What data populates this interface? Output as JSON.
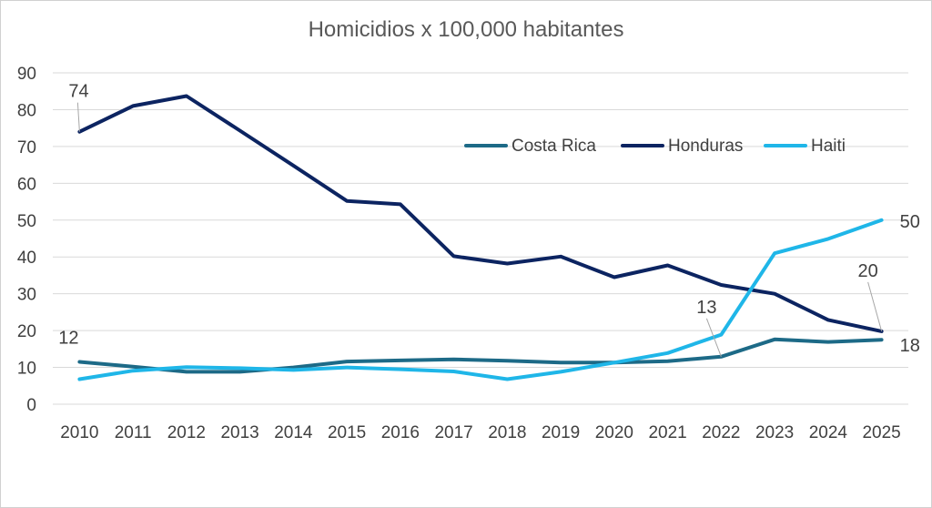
{
  "chart_data": {
    "type": "line",
    "title": "Homicidios x 100,000 habitantes",
    "xlabel": "",
    "ylabel": "",
    "ylim": [
      0,
      90
    ],
    "yticks": [
      "0",
      "10",
      "20",
      "30",
      "40",
      "50",
      "60",
      "70",
      "80",
      "90"
    ],
    "categories": [
      "2010",
      "2011",
      "2012",
      "2013",
      "2014",
      "2015",
      "2016",
      "2017",
      "2018",
      "2019",
      "2020",
      "2021",
      "2022",
      "2023",
      "2024",
      "2025"
    ],
    "grid": true,
    "legend_position": "top-right",
    "series": [
      {
        "name": "Costa Rica",
        "color": "#1d6a87",
        "values": [
          11.5,
          10.2,
          8.8,
          8.8,
          10,
          11.6,
          11.9,
          12.2,
          11.8,
          11.3,
          11.3,
          11.7,
          12.9,
          17.6,
          16.9,
          17.5
        ]
      },
      {
        "name": "Honduras",
        "color": "#0c2461",
        "values": [
          74,
          81,
          83.7,
          74.3,
          64.8,
          55.2,
          54.3,
          40.2,
          38.2,
          40.1,
          34.5,
          37.7,
          32.4,
          30,
          22.9,
          19.8
        ]
      },
      {
        "name": "Haiti",
        "color": "#1fb6e8",
        "values": [
          6.8,
          9.1,
          10.1,
          9.8,
          9.3,
          10,
          9.5,
          8.9,
          6.8,
          8.8,
          11.3,
          13.9,
          18.9,
          41,
          44.9,
          50
        ]
      }
    ],
    "data_labels": [
      {
        "series": "Honduras",
        "category": "2010",
        "text": "74"
      },
      {
        "series": "Costa Rica",
        "category": "2010",
        "text": "12"
      },
      {
        "series": "Costa Rica",
        "category": "2022",
        "text": "13"
      },
      {
        "series": "Honduras",
        "category": "2025",
        "text": "20"
      },
      {
        "series": "Costa Rica",
        "category": "2025",
        "text": "18"
      },
      {
        "series": "Haiti",
        "category": "2025",
        "text": "50"
      }
    ]
  }
}
